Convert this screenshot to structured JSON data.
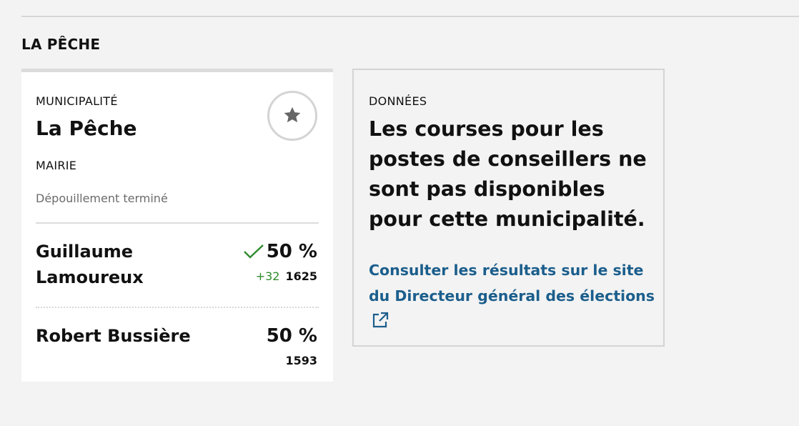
{
  "section": {
    "title": "LA PÊCHE"
  },
  "card": {
    "kicker": "MUNICIPALITÉ",
    "name": "La Pêche",
    "race": "MAIRIE",
    "status": "Dépouillement terminé",
    "candidates": [
      {
        "name": "Guillaume Lamoureux",
        "percent": "50 %",
        "gain": "+32",
        "votes": "1625",
        "elected": true
      },
      {
        "name": "Robert Bussière",
        "percent": "50 %",
        "gain": "",
        "votes": "1593",
        "elected": false
      }
    ]
  },
  "info": {
    "kicker": "DONNÉES",
    "heading": "Les courses pour les postes de conseillers ne sont pas disponibles pour cette municipalité.",
    "link_text": "Consulter les résultats sur le site du Directeur général des élections"
  },
  "icons": {
    "favorite": "star-icon",
    "elected": "checkmark-icon",
    "external": "external-link-icon"
  },
  "colors": {
    "background": "#f3f3f3",
    "link": "#1b5e8c",
    "gain": "#2e8b2e",
    "star": "#666666"
  }
}
